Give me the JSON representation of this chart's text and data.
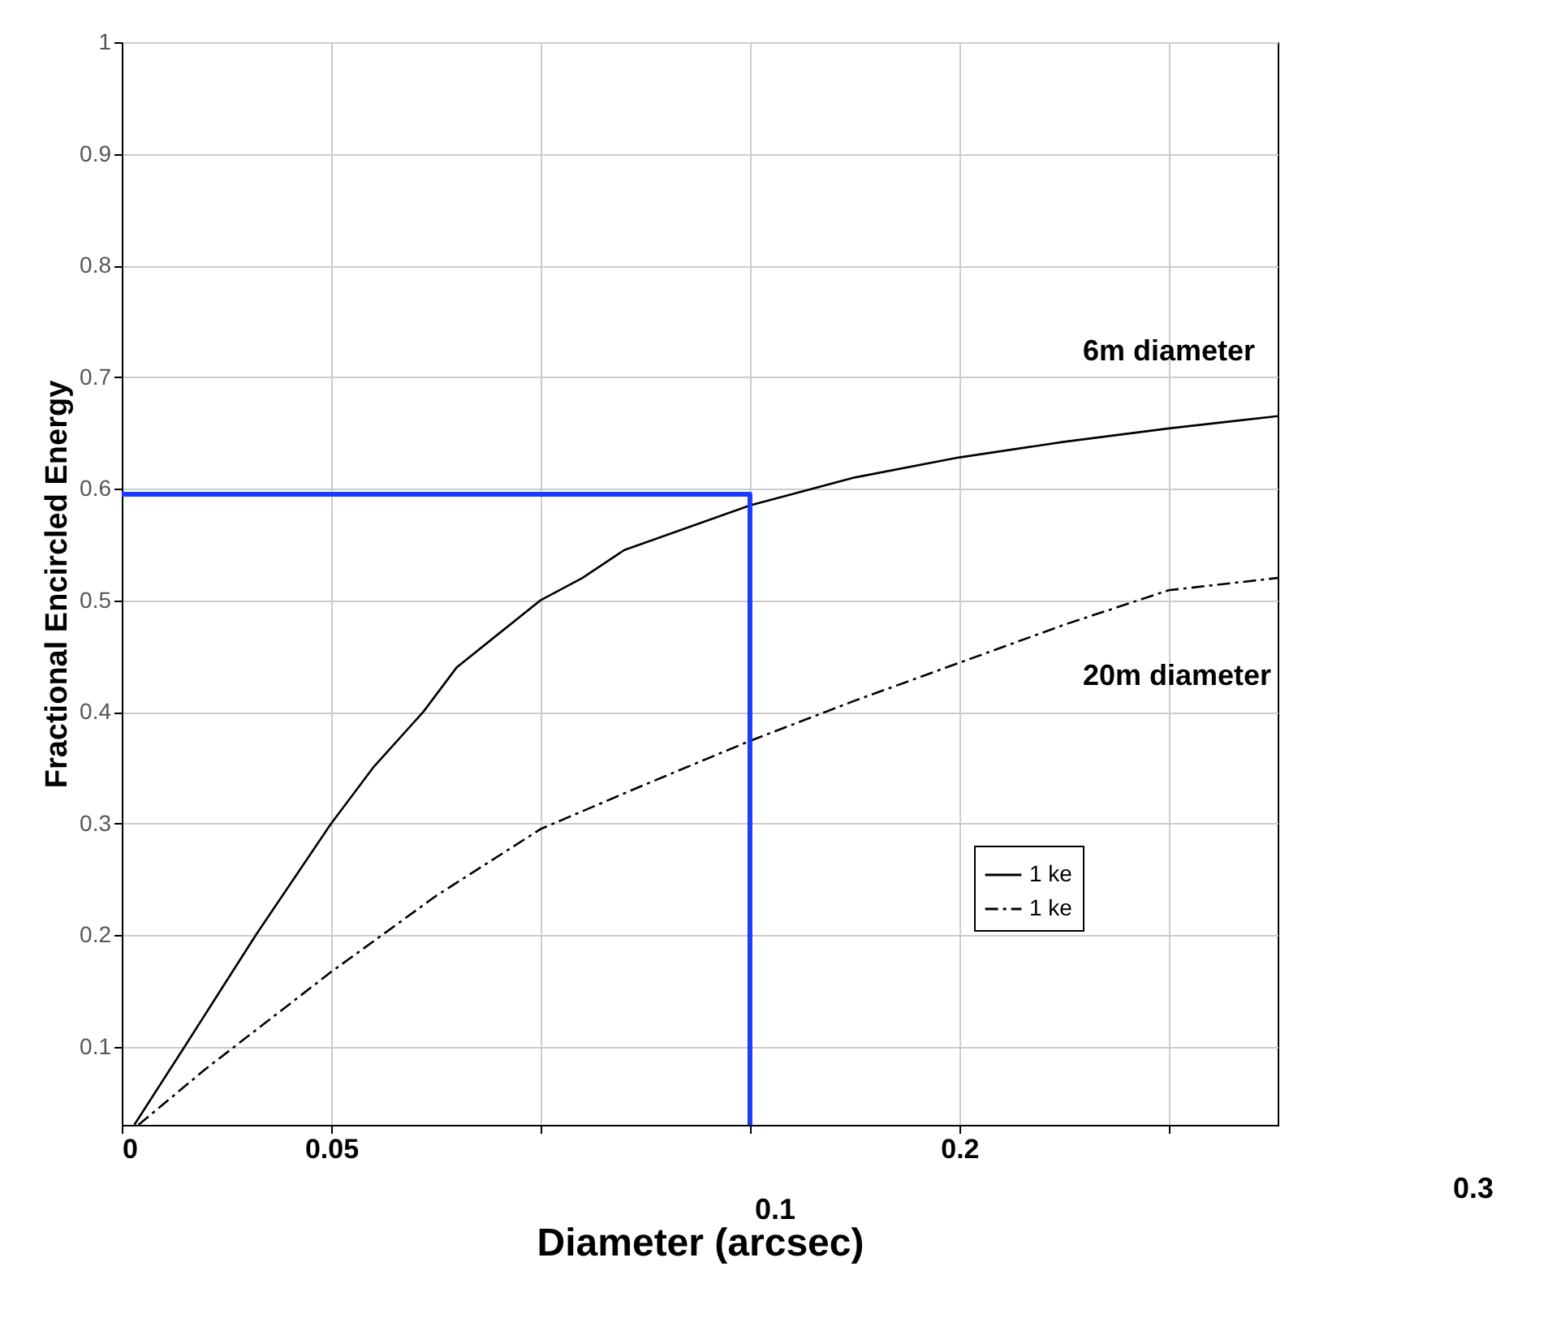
{
  "chart_data": {
    "type": "line",
    "xlabel": "Diameter (arcsec)",
    "ylabel": "Fractional Encircled Energy",
    "xlim": [
      0,
      0.276
    ],
    "ylim": [
      0.03,
      1
    ],
    "xticks": [
      0,
      0.05,
      {
        "value": 0.1,
        "label": null
      },
      {
        "value": 0.15,
        "label": null
      },
      0.2,
      {
        "value": 0.25,
        "label": null
      }
    ],
    "yticks": [
      0.1,
      0.2,
      0.3,
      0.4,
      0.5,
      0.6,
      0.7,
      0.8,
      0.9,
      1
    ],
    "grid": true,
    "legend": "bottom right",
    "series": [
      {
        "name": "1 ke",
        "color": "#000000",
        "line_style": "solid",
        "x": [
          0.003,
          0.015,
          0.032,
          0.05,
          0.06,
          0.072,
          0.08,
          0.09,
          0.1,
          0.11,
          0.12,
          0.135,
          0.15,
          0.175,
          0.2,
          0.225,
          0.25,
          0.276
        ],
        "values": [
          0.03,
          0.1,
          0.2,
          0.3,
          0.35,
          0.4,
          0.44,
          0.47,
          0.5,
          0.52,
          0.545,
          0.565,
          0.585,
          0.61,
          0.628,
          0.642,
          0.654,
          0.665
        ]
      },
      {
        "name": "1 ke",
        "color": "#000000",
        "line_style": "dashed",
        "x": [
          0.004,
          0.02,
          0.05,
          0.075,
          0.1,
          0.125,
          0.15,
          0.175,
          0.2,
          0.225,
          0.25,
          0.276
        ],
        "values": [
          0.03,
          0.08,
          0.167,
          0.235,
          0.295,
          0.335,
          0.374,
          0.41,
          0.444,
          0.478,
          0.509,
          0.52
        ]
      },
      {
        "color": "#1a3cff",
        "line_style": "solid",
        "x": [
          0,
          0.15,
          0.15
        ],
        "values": [
          0.595,
          0.595,
          0.03
        ]
      }
    ],
    "annotations": [
      "6m diameter",
      "20m diameter",
      "0.1",
      "0.3"
    ]
  }
}
